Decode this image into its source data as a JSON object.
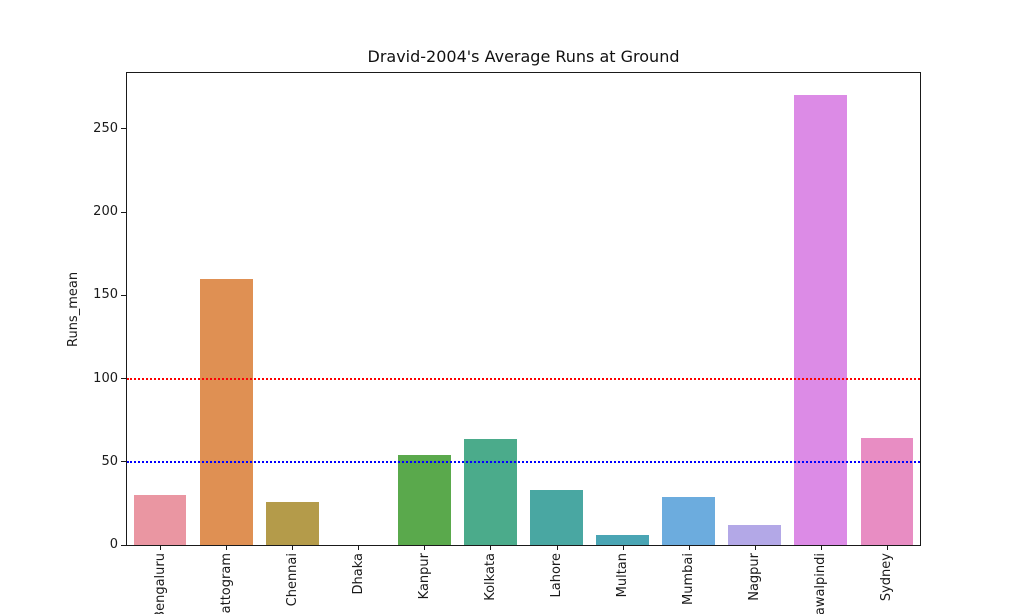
{
  "figure": {
    "background": "#ffffff",
    "axis_color": "#1a1a1a"
  },
  "chart_data": {
    "type": "bar",
    "title": "Dravid-2004's Average Runs at Ground",
    "xlabel": "",
    "ylabel": "Runs_mean",
    "categories": [
      "Bengaluru",
      "Chattogram",
      "Chennai",
      "Dhaka",
      "Kanpur",
      "Kolkata",
      "Lahore",
      "Multan",
      "Mumbai",
      "Nagpur",
      "Rawalpindi",
      "Sydney"
    ],
    "values": [
      30,
      160,
      26,
      0,
      54,
      63.5,
      33,
      6,
      29,
      12,
      270,
      64.5
    ],
    "bar_colors": [
      "#ea96a2",
      "#df9053",
      "#b49b4a",
      "#8aa83c",
      "#5aa94c",
      "#4bab8b",
      "#49a7a2",
      "#4aa5b4",
      "#6cacde",
      "#b3a8e7",
      "#dc8be6",
      "#e88dc3"
    ],
    "yticks": [
      0,
      50,
      100,
      150,
      200,
      250
    ],
    "ylim": [
      0,
      283.5
    ],
    "grid": false,
    "legend": null,
    "bar_width_fraction": 0.8,
    "x_tick_rotation_degrees": 90,
    "reference_lines": [
      {
        "y": 100,
        "color": "#ff0000",
        "style": "dotted",
        "name": "hundred-line"
      },
      {
        "y": 50,
        "color": "#0000ff",
        "style": "dotted",
        "name": "fifty-line"
      }
    ]
  }
}
